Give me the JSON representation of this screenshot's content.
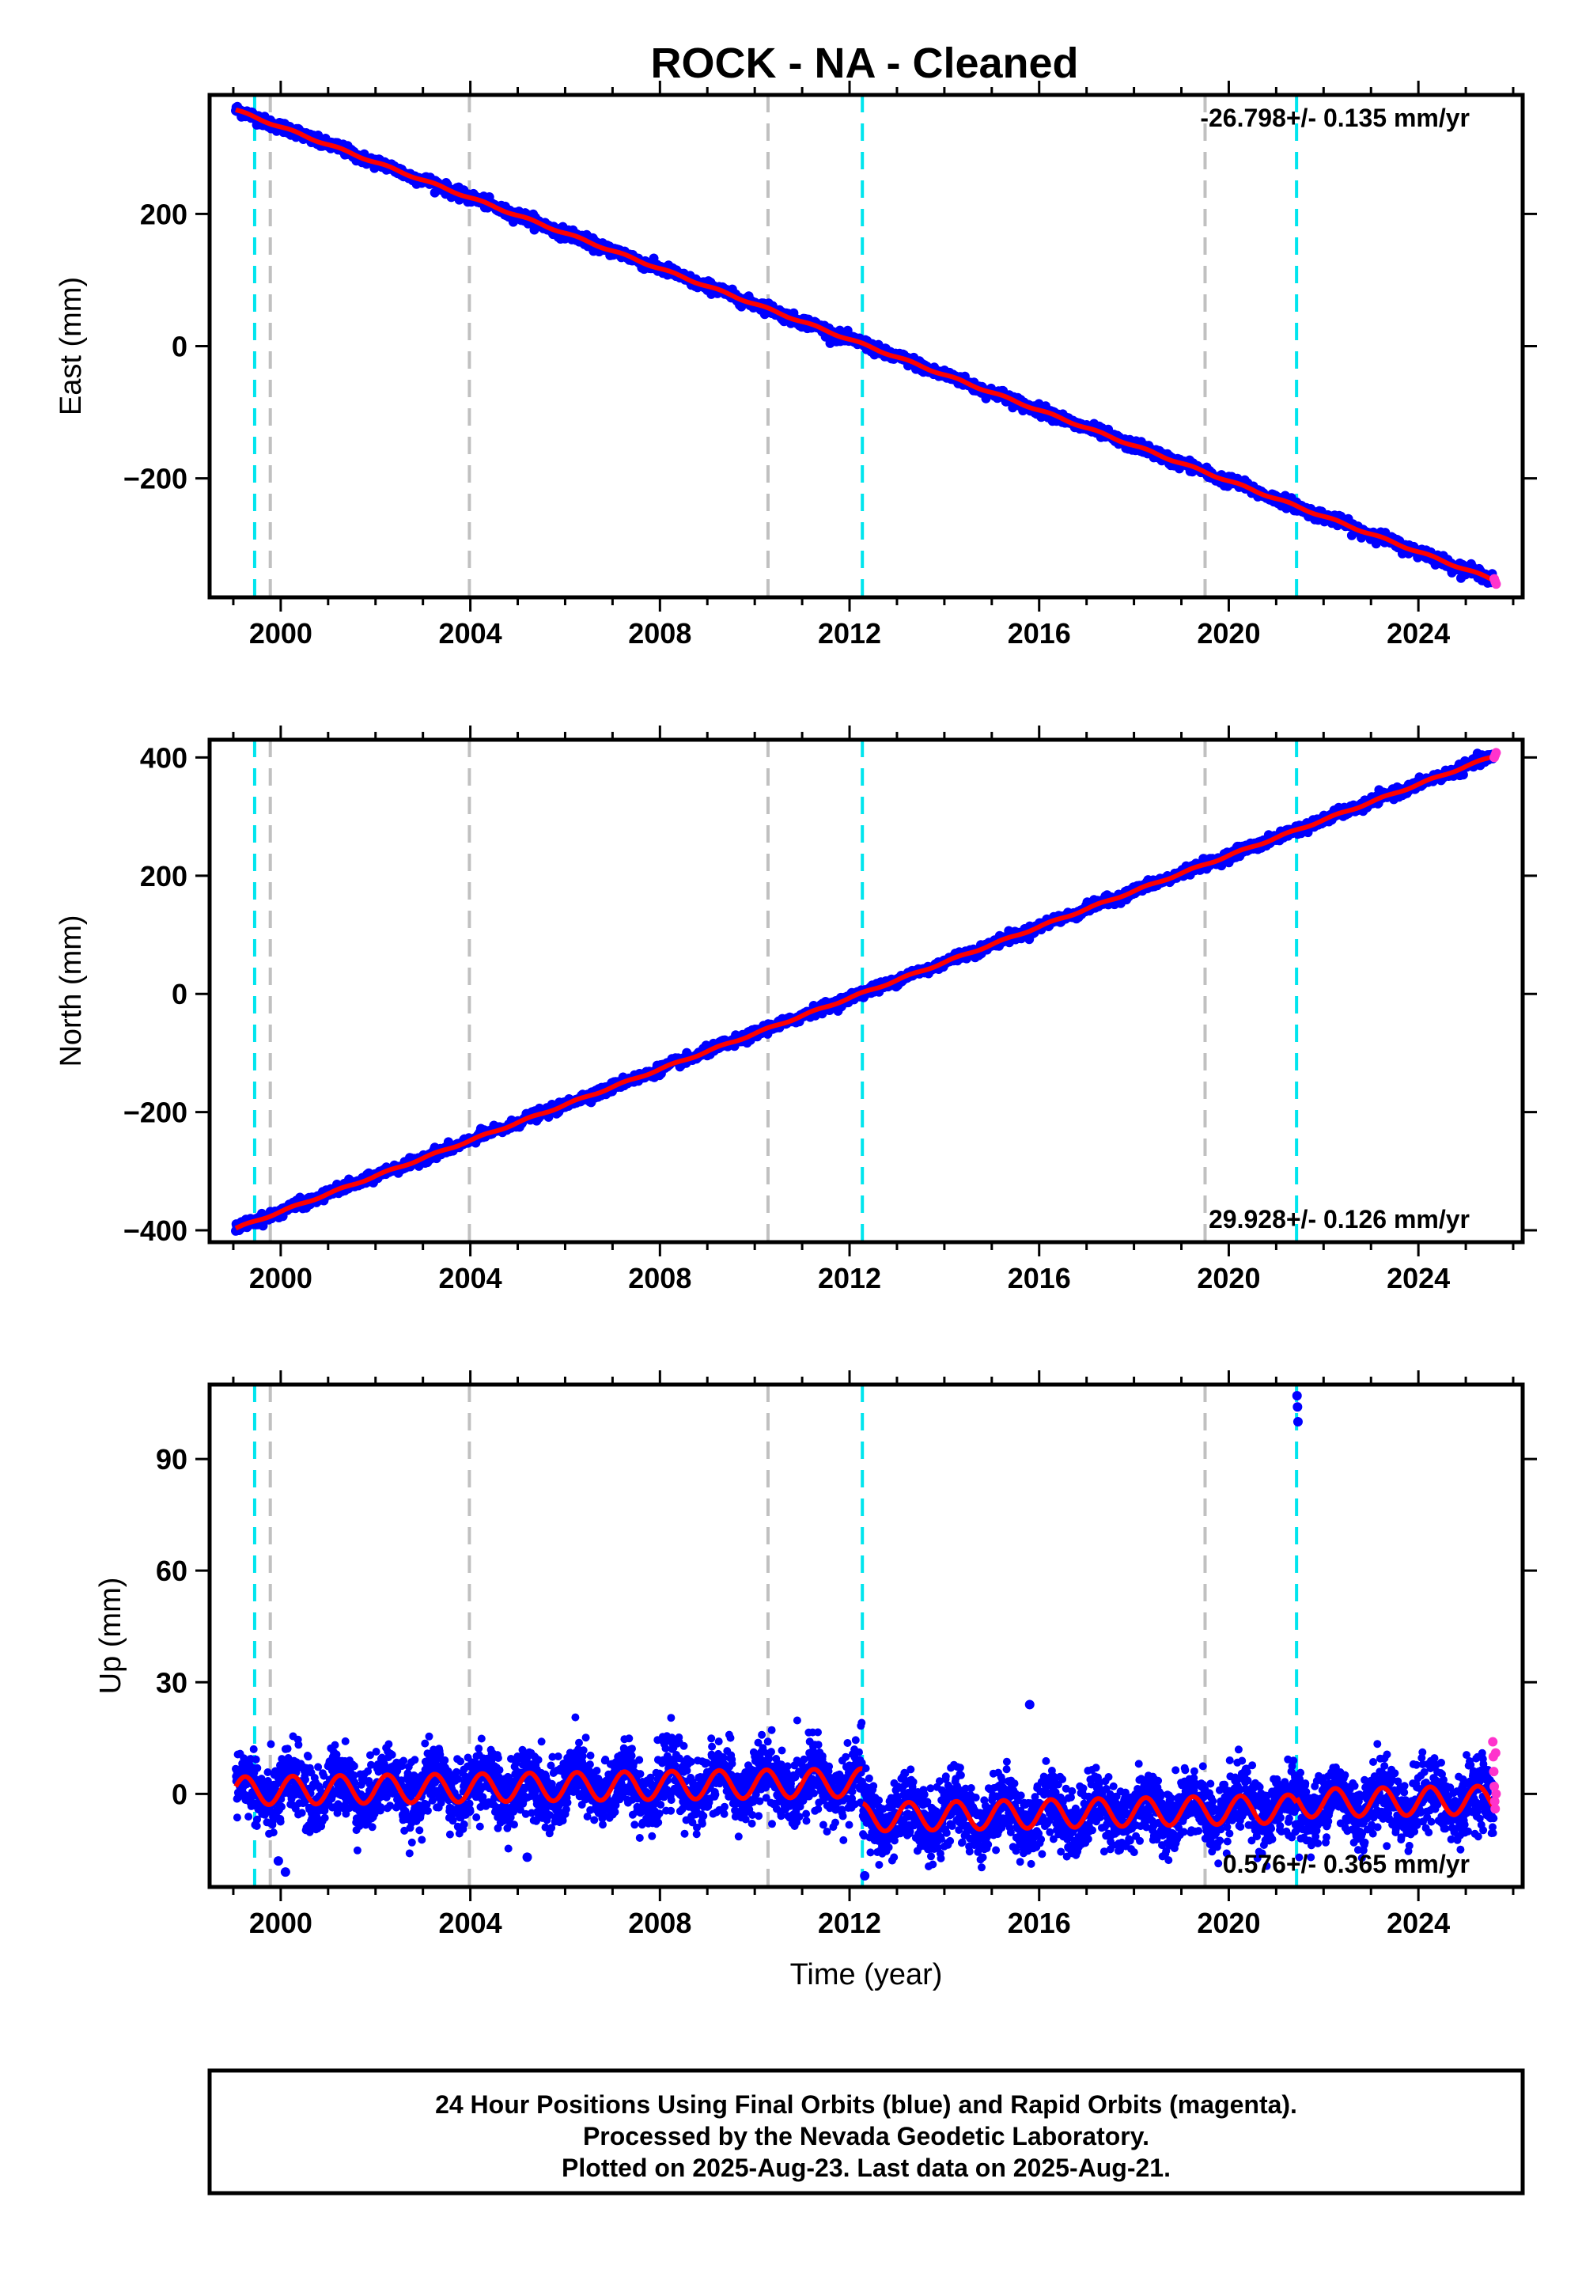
{
  "title": "ROCK  - NA - Cleaned",
  "colors": {
    "final_orbits": "#0000ff",
    "rapid_orbits": "#ff33cc",
    "model_fit": "#ff0000",
    "equipment_change_line": "#00e5ee",
    "other_event_line": "#c0c0c0",
    "frame": "#000000"
  },
  "event_lines": {
    "cyan": [
      1999.45,
      2012.27,
      2021.43
    ],
    "gray": [
      1999.78,
      2003.98,
      2010.28,
      2019.5
    ]
  },
  "footer": {
    "line1": "24 Hour Positions Using Final Orbits (blue) and Rapid Orbits (magenta).",
    "line2": "Processed by the Nevada Geodetic Laboratory.",
    "line3": "Plotted on 2025-Aug-23. Last data on 2025-Aug-21."
  },
  "chart_data": [
    {
      "type": "scatter",
      "id": "east",
      "ylabel": "East (mm)",
      "xlabel": "",
      "xlim": [
        1998.5,
        2026.2
      ],
      "ylim": [
        -380,
        380
      ],
      "xticks": [
        2000,
        2004,
        2008,
        2012,
        2016,
        2020,
        2024
      ],
      "yticks": [
        -200,
        0,
        200
      ],
      "ytick_labels": [
        "−200",
        "0",
        "200"
      ],
      "rate_label": "-26.798+/- 0.135 mm/yr",
      "rate_position": "top-right",
      "x_start": 1999.05,
      "x_end": 2025.64,
      "y_start": 357,
      "y_end": -355,
      "seasonal_amplitude": 1.5,
      "scatter_noise": 4,
      "rapid_points": [
        [
          2025.6,
          -352
        ],
        [
          2025.62,
          -356
        ],
        [
          2025.64,
          -360
        ]
      ],
      "outliers": []
    },
    {
      "type": "scatter",
      "id": "north",
      "ylabel": "North (mm)",
      "xlabel": "",
      "xlim": [
        1998.5,
        2026.2
      ],
      "ylim": [
        -420,
        430
      ],
      "xticks": [
        2000,
        2004,
        2008,
        2012,
        2016,
        2020,
        2024
      ],
      "yticks": [
        -400,
        -200,
        0,
        200,
        400
      ],
      "ytick_labels": [
        "−400",
        "−200",
        "0",
        "200",
        "400"
      ],
      "rate_label": "29.928+/- 0.126 mm/yr",
      "rate_position": "bottom-right",
      "x_start": 1999.05,
      "x_end": 2025.64,
      "y_start": -397,
      "y_end": 404,
      "seasonal_amplitude": 1.5,
      "scatter_noise": 4,
      "rapid_points": [
        [
          2025.6,
          400
        ],
        [
          2025.62,
          404
        ],
        [
          2025.64,
          408
        ]
      ],
      "outliers": []
    },
    {
      "type": "scatter",
      "id": "up",
      "ylabel": "Up (mm)",
      "xlabel": "Time (year)",
      "xlim": [
        1998.5,
        2026.2
      ],
      "ylim": [
        -25,
        110
      ],
      "xticks": [
        2000,
        2004,
        2008,
        2012,
        2016,
        2020,
        2024
      ],
      "yticks": [
        0,
        30,
        60,
        90
      ],
      "ytick_labels": [
        "0",
        "30",
        "60",
        "90"
      ],
      "rate_label": "0.576+/- 0.365 mm/yr",
      "rate_position": "bottom-right",
      "model_segments": [
        {
          "x0": 1999.05,
          "x1": 2012.27,
          "y0": 0.8,
          "y1": 3.0
        },
        {
          "x0": 2012.27,
          "x1": 2021.43,
          "y0": -6.3,
          "y1": -4.0
        },
        {
          "x0": 2021.43,
          "x1": 2025.64,
          "y0": -2.5,
          "y1": -1.6
        }
      ],
      "seasonal_amplitude": 3.8,
      "scatter_noise": 4.5,
      "rapid_points": [
        [
          2025.57,
          14
        ],
        [
          2025.58,
          10
        ],
        [
          2025.59,
          6
        ],
        [
          2025.6,
          2
        ],
        [
          2025.61,
          -2
        ],
        [
          2025.62,
          -4
        ],
        [
          2025.63,
          11
        ],
        [
          2025.64,
          0
        ]
      ],
      "outliers": [
        [
          2021.44,
          107
        ],
        [
          2021.45,
          104
        ],
        [
          2021.46,
          100
        ],
        [
          2015.8,
          24
        ],
        [
          1999.95,
          -18
        ],
        [
          2000.1,
          -21
        ],
        [
          2005.2,
          -17
        ],
        [
          2012.32,
          -22
        ]
      ]
    }
  ]
}
